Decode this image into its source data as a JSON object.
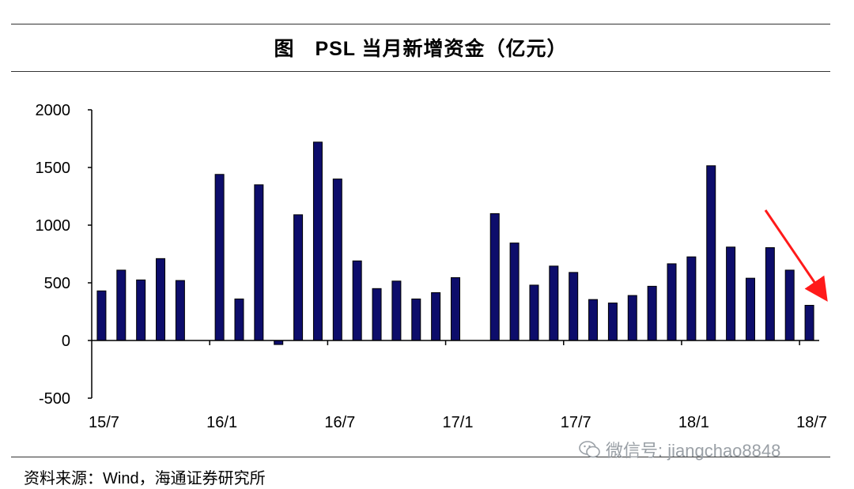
{
  "header": {
    "title": "图　PSL 当月新增资金（亿元）"
  },
  "footer": {
    "source": "资料来源：Wind，海通证券研究所"
  },
  "watermark": {
    "text": "微信号: jiangchao8848",
    "icon": "wechat-icon"
  },
  "colors": {
    "bar": "#0d0d6b",
    "bar_stroke": "#000000",
    "arrow": "#ff1a1a",
    "axis": "#000000"
  },
  "chart_data": {
    "type": "bar",
    "title": "图　PSL 当月新增资金（亿元）",
    "xlabel": "",
    "ylabel": "",
    "ylim": [
      -500,
      2000
    ],
    "yticks": [
      2000,
      1500,
      1000,
      500,
      0,
      -500
    ],
    "xtick_labels": [
      "15/7",
      "16/1",
      "16/7",
      "17/1",
      "17/7",
      "18/1",
      "18/7"
    ],
    "categories": [
      "15/7",
      "15/8",
      "15/9",
      "15/10",
      "15/11",
      "15/12",
      "16/1",
      "16/2",
      "16/3",
      "16/4",
      "16/5",
      "16/6",
      "16/7",
      "16/8",
      "16/9",
      "16/10",
      "16/11",
      "16/12",
      "17/1",
      "17/2",
      "17/3",
      "17/4",
      "17/5",
      "17/6",
      "17/7",
      "17/8",
      "17/9",
      "17/10",
      "17/11",
      "17/12",
      "18/1",
      "18/2",
      "18/3",
      "18/4",
      "18/5",
      "18/6",
      "18/7"
    ],
    "values": [
      430,
      610,
      525,
      710,
      520,
      0,
      1440,
      360,
      1350,
      -35,
      1090,
      1720,
      1400,
      690,
      450,
      515,
      360,
      415,
      545,
      0,
      1100,
      845,
      480,
      645,
      590,
      355,
      325,
      390,
      470,
      665,
      725,
      1515,
      810,
      540,
      805,
      610,
      305
    ],
    "grid": false,
    "legend": "none",
    "annotation": "red arrow pointing down-right near last bars"
  }
}
